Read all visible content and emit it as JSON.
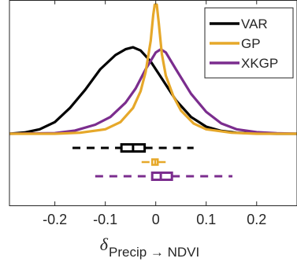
{
  "chart_data": {
    "type": "density",
    "title": "",
    "xlabel": {
      "symbol": "δ",
      "subscript": "Precip → NDVI"
    },
    "ylabel": "",
    "xlim": [
      -0.29,
      0.28
    ],
    "xticks": [
      -0.2,
      -0.1,
      0,
      0.1,
      0.2
    ],
    "xtick_labels": [
      "-0.2",
      "-0.1",
      "0",
      "0.1",
      "0.2"
    ],
    "grid": false,
    "legend_position": "top-right",
    "density_ylim": [
      0,
      1
    ],
    "series": [
      {
        "name": "VAR",
        "color": "#000000",
        "density_x": [
          -0.29,
          -0.26,
          -0.23,
          -0.2,
          -0.17,
          -0.14,
          -0.11,
          -0.08,
          -0.06,
          -0.045,
          -0.03,
          -0.01,
          0.01,
          0.04,
          0.07,
          0.1,
          0.13,
          0.16,
          0.2,
          0.24,
          0.28
        ],
        "density_y": [
          0.0,
          0.01,
          0.035,
          0.09,
          0.2,
          0.34,
          0.5,
          0.61,
          0.655,
          0.67,
          0.645,
          0.56,
          0.44,
          0.26,
          0.13,
          0.055,
          0.022,
          0.008,
          0.002,
          0.0,
          0.0
        ],
        "box": {
          "whisker_low": -0.165,
          "q1": -0.068,
          "median": -0.045,
          "q3": -0.022,
          "whisker_high": 0.075
        }
      },
      {
        "name": "GP",
        "color": "#E6A82A",
        "density_x": [
          -0.29,
          -0.2,
          -0.15,
          -0.1,
          -0.07,
          -0.045,
          -0.03,
          -0.02,
          -0.01,
          -0.005,
          -0.002,
          0.002,
          0.006,
          0.012,
          0.02,
          0.035,
          0.05,
          0.075,
          0.1,
          0.15,
          0.2,
          0.28
        ],
        "density_y": [
          0.0,
          0.0,
          0.008,
          0.035,
          0.09,
          0.2,
          0.33,
          0.48,
          0.72,
          0.92,
          1.0,
          1.0,
          0.86,
          0.62,
          0.45,
          0.29,
          0.18,
          0.08,
          0.035,
          0.008,
          0.0,
          0.0
        ],
        "box": {
          "whisker_low": -0.028,
          "q1": -0.007,
          "median": -0.001,
          "q3": 0.004,
          "whisker_high": 0.022
        }
      },
      {
        "name": "XKGP",
        "color": "#7B2D8E",
        "density_x": [
          -0.29,
          -0.2,
          -0.16,
          -0.12,
          -0.09,
          -0.06,
          -0.04,
          -0.02,
          0.0,
          0.01,
          0.02,
          0.04,
          0.07,
          0.1,
          0.13,
          0.16,
          0.2,
          0.24,
          0.28
        ],
        "density_y": [
          0.0,
          0.005,
          0.025,
          0.07,
          0.13,
          0.24,
          0.35,
          0.5,
          0.63,
          0.655,
          0.63,
          0.5,
          0.31,
          0.17,
          0.08,
          0.035,
          0.012,
          0.004,
          0.0
        ],
        "box": {
          "whisker_low": -0.12,
          "q1": -0.007,
          "median": 0.01,
          "q3": 0.032,
          "whisker_high": 0.152
        }
      }
    ]
  }
}
